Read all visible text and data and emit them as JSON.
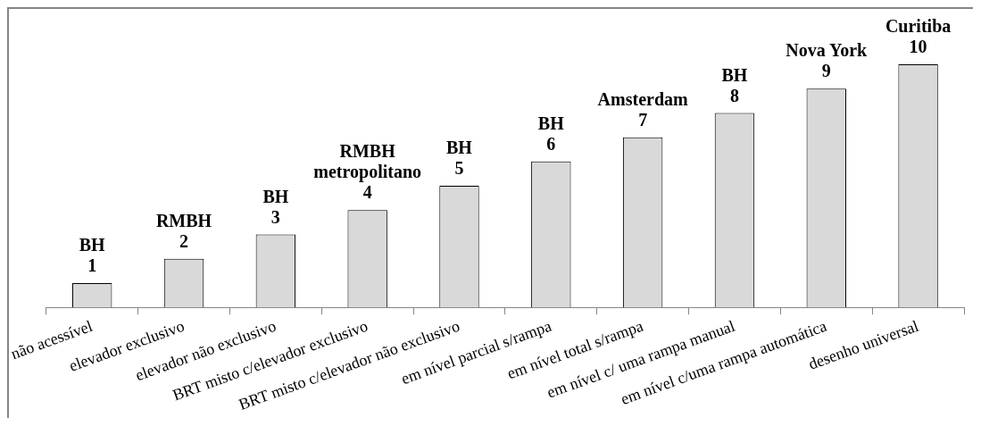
{
  "chart_data": {
    "type": "bar",
    "categories": [
      "não acessível",
      "elevador exclusivo",
      "elevador não exclusivo",
      "BRT misto c/elevador exclusivo",
      "BRT misto c/elevador não exclusivo",
      "em nível parcial s/rampa",
      "em nível total s/rampa",
      "em nível c/ uma rampa manual",
      "em nível c/uma rampa automática",
      "desenho universal"
    ],
    "values": [
      1,
      2,
      3,
      4,
      5,
      6,
      7,
      8,
      9,
      10
    ],
    "color": "#d9d9d9",
    "data_labels": true,
    "grid": false,
    "legend": false,
    "annotations": [
      {
        "text": "BH",
        "x": "não acessível",
        "y": 1
      },
      {
        "text": "RMBH",
        "x": "elevador exclusivo",
        "y": 2
      },
      {
        "text": "BH",
        "x": "elevador não exclusivo",
        "y": 3
      },
      {
        "text": "RMBH metropolitano",
        "x": "BRT misto c/elevador exclusivo",
        "y": 4
      },
      {
        "text": "BH",
        "x": "BRT misto c/elevador não exclusivo",
        "y": 5
      },
      {
        "text": "BH",
        "x": "em nível parcial s/rampa",
        "y": 6
      },
      {
        "text": "Amsterdam",
        "x": "em nível total s/rampa",
        "y": 7
      },
      {
        "text": "BH",
        "x": "em nível c/ uma rampa manual",
        "y": 8
      },
      {
        "text": "Nova York",
        "x": "em nível c/uma rampa automática",
        "y": 9
      },
      {
        "text": "Curitiba",
        "x": "desenho universal",
        "y": 10
      }
    ]
  }
}
